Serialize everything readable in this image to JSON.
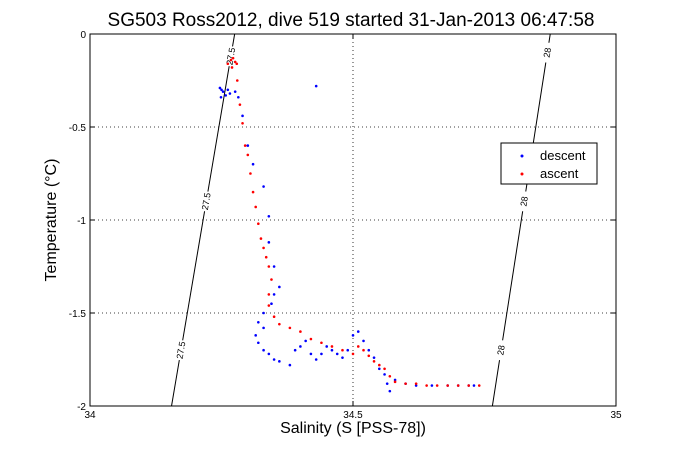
{
  "chart_data": {
    "type": "scatter",
    "title": "SG503 Ross2012, dive 519 started 31-Jan-2013 06:47:58",
    "xlabel": "Salinity (S [PSS-78])",
    "ylabel": "Temperature (°C)",
    "xlim": [
      34,
      35
    ],
    "ylim": [
      -2,
      0
    ],
    "x_ticks": [
      34,
      34.5,
      35
    ],
    "x_tick_labels": [
      "34",
      "34.5",
      "35"
    ],
    "y_ticks": [
      0,
      -0.5,
      -1,
      -1.5,
      -2
    ],
    "y_tick_labels": [
      "0",
      "-0.5",
      "-1",
      "-1.5",
      "-2"
    ],
    "grid": true,
    "legend_position": "right",
    "series": [
      {
        "name": "descent",
        "color": "#0000ff",
        "points": [
          [
            34.43,
            -0.28
          ],
          [
            34.25,
            -0.3
          ],
          [
            34.253,
            -0.31
          ],
          [
            34.258,
            -0.33
          ],
          [
            34.262,
            -0.3
          ],
          [
            34.266,
            -0.32
          ],
          [
            34.247,
            -0.29
          ],
          [
            34.249,
            -0.34
          ],
          [
            34.276,
            -0.31
          ],
          [
            34.282,
            -0.34
          ],
          [
            34.29,
            -0.44
          ],
          [
            34.3,
            -0.6
          ],
          [
            34.31,
            -0.7
          ],
          [
            34.33,
            -0.82
          ],
          [
            34.34,
            -0.98
          ],
          [
            34.34,
            -1.12
          ],
          [
            34.35,
            -1.25
          ],
          [
            34.36,
            -1.36
          ],
          [
            34.35,
            -1.4
          ],
          [
            34.345,
            -1.45
          ],
          [
            34.33,
            -1.5
          ],
          [
            34.32,
            -1.55
          ],
          [
            34.33,
            -1.58
          ],
          [
            34.315,
            -1.62
          ],
          [
            34.32,
            -1.66
          ],
          [
            34.33,
            -1.7
          ],
          [
            34.34,
            -1.72
          ],
          [
            34.35,
            -1.75
          ],
          [
            34.36,
            -1.76
          ],
          [
            34.38,
            -1.78
          ],
          [
            34.39,
            -1.7
          ],
          [
            34.4,
            -1.68
          ],
          [
            34.41,
            -1.65
          ],
          [
            34.42,
            -1.72
          ],
          [
            34.43,
            -1.75
          ],
          [
            34.44,
            -1.72
          ],
          [
            34.45,
            -1.68
          ],
          [
            34.46,
            -1.7
          ],
          [
            34.47,
            -1.72
          ],
          [
            34.48,
            -1.74
          ],
          [
            34.49,
            -1.7
          ],
          [
            34.5,
            -1.62
          ],
          [
            34.51,
            -1.6
          ],
          [
            34.52,
            -1.65
          ],
          [
            34.53,
            -1.7
          ],
          [
            34.54,
            -1.74
          ],
          [
            34.55,
            -1.8
          ],
          [
            34.56,
            -1.83
          ],
          [
            34.565,
            -1.88
          ],
          [
            34.57,
            -1.92
          ],
          [
            34.58,
            -1.86
          ],
          [
            34.6,
            -1.88
          ],
          [
            34.62,
            -1.89
          ],
          [
            34.65,
            -1.89
          ],
          [
            34.68,
            -1.89
          ],
          [
            34.7,
            -1.89
          ],
          [
            34.72,
            -1.89
          ],
          [
            34.73,
            -1.89
          ]
        ]
      },
      {
        "name": "ascent",
        "color": "#ff0000",
        "points": [
          [
            34.268,
            -0.14
          ],
          [
            34.272,
            -0.13
          ],
          [
            34.276,
            -0.15
          ],
          [
            34.262,
            -0.16
          ],
          [
            34.27,
            -0.18
          ],
          [
            34.279,
            -0.16
          ],
          [
            34.28,
            -0.25
          ],
          [
            34.285,
            -0.38
          ],
          [
            34.29,
            -0.48
          ],
          [
            34.295,
            -0.6
          ],
          [
            34.3,
            -0.65
          ],
          [
            34.305,
            -0.75
          ],
          [
            34.31,
            -0.85
          ],
          [
            34.315,
            -0.93
          ],
          [
            34.32,
            -1.02
          ],
          [
            34.325,
            -1.1
          ],
          [
            34.33,
            -1.15
          ],
          [
            34.335,
            -1.2
          ],
          [
            34.34,
            -1.25
          ],
          [
            34.345,
            -1.32
          ],
          [
            34.34,
            -1.4
          ],
          [
            34.34,
            -1.46
          ],
          [
            34.35,
            -1.52
          ],
          [
            34.36,
            -1.56
          ],
          [
            34.38,
            -1.58
          ],
          [
            34.4,
            -1.6
          ],
          [
            34.42,
            -1.64
          ],
          [
            34.44,
            -1.66
          ],
          [
            34.46,
            -1.68
          ],
          [
            34.48,
            -1.7
          ],
          [
            34.5,
            -1.72
          ],
          [
            34.51,
            -1.68
          ],
          [
            34.52,
            -1.7
          ],
          [
            34.53,
            -1.73
          ],
          [
            34.54,
            -1.76
          ],
          [
            34.55,
            -1.78
          ],
          [
            34.56,
            -1.8
          ],
          [
            34.57,
            -1.84
          ],
          [
            34.58,
            -1.87
          ],
          [
            34.6,
            -1.88
          ],
          [
            34.62,
            -1.88
          ],
          [
            34.64,
            -1.89
          ],
          [
            34.66,
            -1.89
          ],
          [
            34.68,
            -1.89
          ],
          [
            34.7,
            -1.89
          ],
          [
            34.72,
            -1.89
          ],
          [
            34.74,
            -1.89
          ]
        ]
      }
    ],
    "density_contours": [
      {
        "label": "27.5",
        "points": [
          [
            34.275,
            0
          ],
          [
            34.155,
            -2
          ]
        ],
        "labels_at_y": [
          -0.12,
          -0.9,
          -1.7
        ]
      },
      {
        "label": "28",
        "points": [
          [
            34.875,
            0
          ],
          [
            34.765,
            -2
          ]
        ],
        "labels_at_y": [
          -0.1,
          -0.9,
          -1.7
        ]
      }
    ]
  }
}
